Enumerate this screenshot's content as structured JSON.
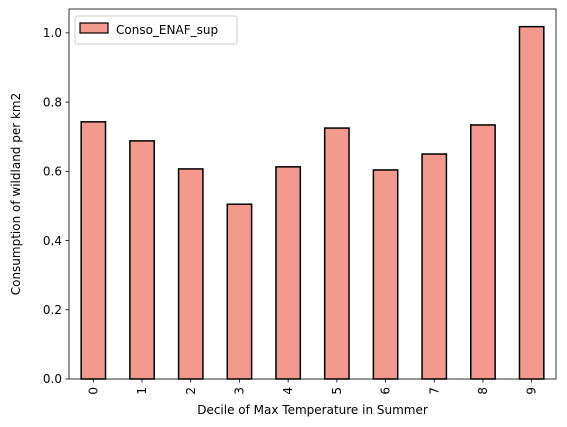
{
  "chart_data": {
    "type": "bar",
    "categories": [
      "0",
      "1",
      "2",
      "3",
      "4",
      "5",
      "6",
      "7",
      "8",
      "9"
    ],
    "series": [
      {
        "name": "Conso_ENAF_sup",
        "values": [
          0.743,
          0.688,
          0.607,
          0.505,
          0.613,
          0.725,
          0.604,
          0.65,
          0.734,
          1.018
        ]
      }
    ],
    "title": "",
    "xlabel": "Decile of Max Temperature in Summer",
    "ylabel": "Consumption of wildland per km2",
    "ylim": [
      0,
      1.069
    ],
    "yticks": [
      "0.0",
      "0.2",
      "0.4",
      "0.6",
      "0.8",
      "1.0"
    ],
    "grid": false,
    "legend": "top-left",
    "colors": {
      "bar_fill": "#f4998d",
      "bar_edge": "#000000"
    }
  }
}
